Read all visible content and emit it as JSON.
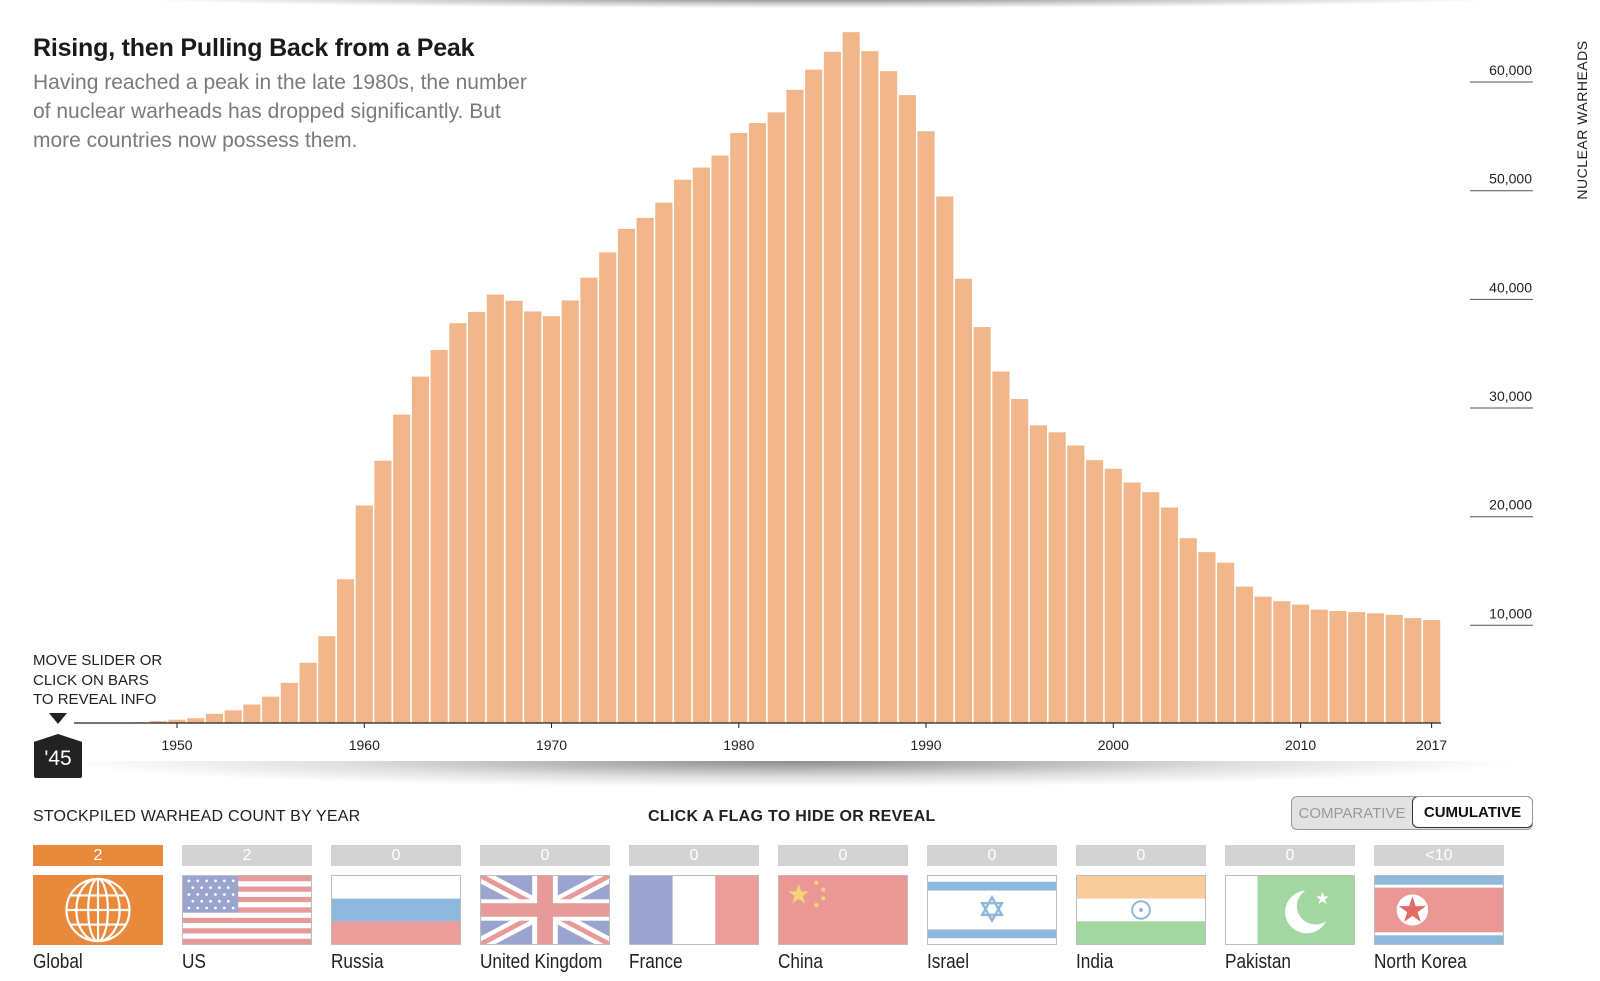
{
  "header": {
    "title": "Rising, then Pulling Back from a Peak",
    "subtitle": "Having reached a peak in the late 1980s, the number of nuclear warheads has dropped significantly. But more countries now possess them."
  },
  "slider": {
    "hint_lines": [
      "MOVE SLIDER OR",
      "CLICK ON BARS",
      "TO REVEAL INFO"
    ],
    "handle_label": "'45"
  },
  "chart_data": {
    "type": "bar",
    "title": "Rising, then Pulling Back from a Peak",
    "ylabel": "NUCLEAR WARHEADS",
    "xlabel": "",
    "ylim": [
      0,
      63500
    ],
    "x_ticks": [
      1950,
      1960,
      1970,
      1980,
      1990,
      2000,
      2010,
      2017
    ],
    "y_ticks": [
      10000,
      20000,
      30000,
      40000,
      50000,
      60000
    ],
    "y_tick_labels": [
      "10,000",
      "20,000",
      "30,000",
      "40,000",
      "50,000",
      "60,000"
    ],
    "bar_color": "#f2b68b",
    "grid": false,
    "categories": [
      1945,
      1946,
      1947,
      1948,
      1949,
      1950,
      1951,
      1952,
      1953,
      1954,
      1955,
      1956,
      1957,
      1958,
      1959,
      1960,
      1961,
      1962,
      1963,
      1964,
      1965,
      1966,
      1967,
      1968,
      1969,
      1970,
      1971,
      1972,
      1973,
      1974,
      1975,
      1976,
      1977,
      1978,
      1979,
      1980,
      1981,
      1982,
      1983,
      1984,
      1985,
      1986,
      1987,
      1988,
      1989,
      1990,
      1991,
      1992,
      1993,
      1994,
      1995,
      1996,
      1997,
      1998,
      1999,
      2000,
      2001,
      2002,
      2003,
      2004,
      2005,
      2006,
      2007,
      2008,
      2009,
      2010,
      2011,
      2012,
      2013,
      2014,
      2015,
      2016,
      2017
    ],
    "values": [
      2,
      9,
      13,
      56,
      170,
      304,
      438,
      841,
      1169,
      1703,
      2422,
      3692,
      5543,
      7987,
      13225,
      20012,
      24137,
      28379,
      31881,
      34328,
      36795,
      37833,
      39426,
      38861,
      37876,
      37439,
      38888,
      40985,
      43309,
      45470,
      46486,
      47889,
      49998,
      51115,
      52228,
      54293,
      55210,
      56198,
      58267,
      60128,
      61765,
      63577,
      61824,
      59985,
      57785,
      54458,
      48455,
      40884,
      36432,
      32353,
      29816,
      27396,
      26756,
      25534,
      24192,
      23401,
      22133,
      21240,
      19833,
      17004,
      15724,
      14752,
      12556,
      11626,
      11211,
      10895,
      10428,
      10300,
      10205,
      10093,
      9953,
      9650,
      9470
    ]
  },
  "controls": {
    "stockpile_label": "STOCKPILED WARHEAD COUNT BY YEAR",
    "flag_instruction": "CLICK A FLAG TO HIDE OR REVEAL",
    "mode_options": [
      "COMPARATIVE",
      "CUMULATIVE"
    ],
    "selected_mode": "CUMULATIVE"
  },
  "flags": [
    {
      "name": "Global",
      "count": "2",
      "icon": "globe-icon",
      "active": true
    },
    {
      "name": "US",
      "count": "2",
      "icon": "us-flag-icon",
      "active": false
    },
    {
      "name": "Russia",
      "count": "0",
      "icon": "russia-flag-icon",
      "active": false
    },
    {
      "name": "United Kingdom",
      "count": "0",
      "icon": "uk-flag-icon",
      "active": false
    },
    {
      "name": "France",
      "count": "0",
      "icon": "france-flag-icon",
      "active": false
    },
    {
      "name": "China",
      "count": "0",
      "icon": "china-flag-icon",
      "active": false
    },
    {
      "name": "Israel",
      "count": "0",
      "icon": "israel-flag-icon",
      "active": false
    },
    {
      "name": "India",
      "count": "0",
      "icon": "india-flag-icon",
      "active": false
    },
    {
      "name": "Pakistan",
      "count": "0",
      "icon": "pakistan-flag-icon",
      "active": false
    },
    {
      "name": "North Korea",
      "count": "<10",
      "icon": "north-korea-flag-icon",
      "active": false
    }
  ],
  "colors": {
    "accent": "#e8893c",
    "bar": "#f2b68b",
    "inactive_count": "#d3d3d3"
  }
}
